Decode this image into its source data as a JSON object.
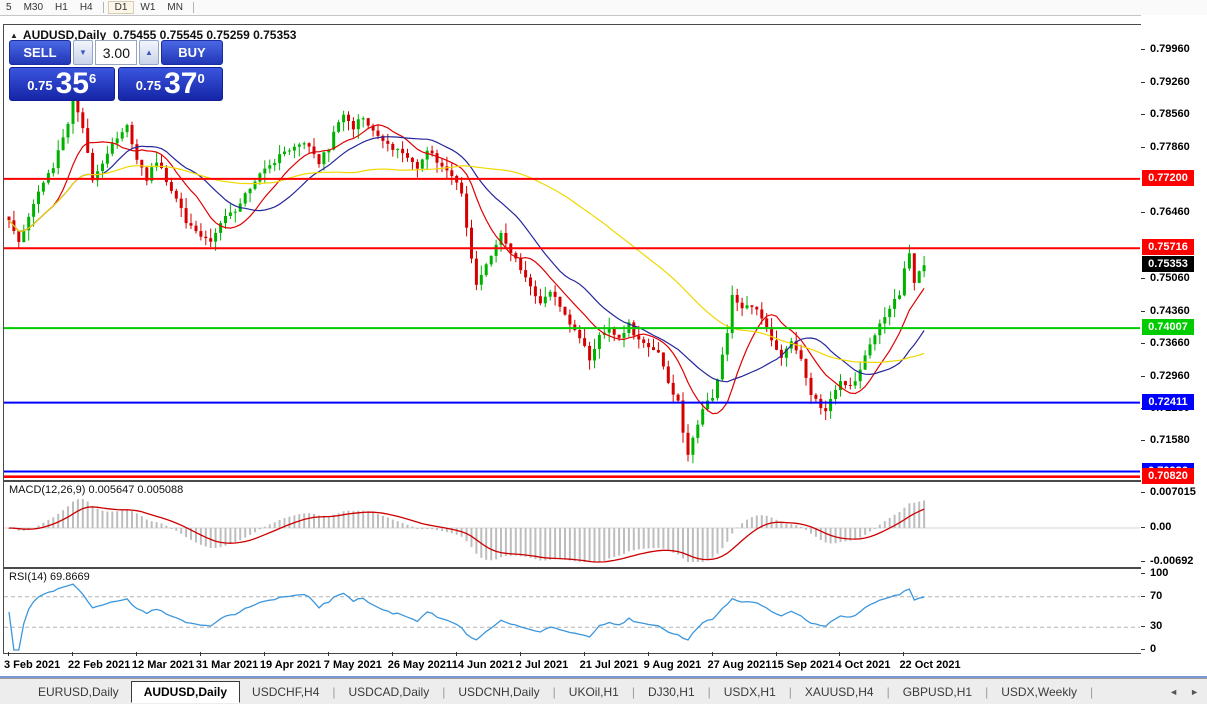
{
  "icons": {
    "collapse": "▲",
    "spin_up": "▲",
    "spin_down": "▼",
    "scroll_left": "◄",
    "scroll_right": "►"
  },
  "toolbar": {
    "periods": [
      "5",
      "M30",
      "H1",
      "H4",
      "D1",
      "W1",
      "MN"
    ],
    "active": "D1"
  },
  "chart": {
    "title_symbol": "AUDUSD,Daily",
    "title_ohlc": "0.75455 0.75545 0.75259 0.75353",
    "trade_panel": {
      "sell_label": "SELL",
      "buy_label": "BUY",
      "volume": "3.00",
      "sell_price_prefix": "0.75",
      "sell_price_big": "35",
      "sell_price_sup": "6",
      "buy_price_prefix": "0.75",
      "buy_price_big": "37",
      "buy_price_sup": "0"
    }
  },
  "price_axis": {
    "ticks": [
      {
        "label": "0.79960",
        "price": 0.7996
      },
      {
        "label": "0.79260",
        "price": 0.7926
      },
      {
        "label": "0.78560",
        "price": 0.7856
      },
      {
        "label": "0.77860",
        "price": 0.7786
      },
      {
        "label": "0.76460",
        "price": 0.7646
      },
      {
        "label": "0.75060",
        "price": 0.7506
      },
      {
        "label": "0.74360",
        "price": 0.7436
      },
      {
        "label": "0.73660",
        "price": 0.7366
      },
      {
        "label": "0.72960",
        "price": 0.7296
      },
      {
        "label": "0.72280",
        "price": 0.7228
      },
      {
        "label": "0.71580",
        "price": 0.7158
      }
    ],
    "current": {
      "label": "0.75353",
      "price": 0.75353,
      "bg": "#000000",
      "fg": "#ffffff"
    }
  },
  "chart_data": {
    "type": "candlestick",
    "symbol": "AUDUSD",
    "timeframe": "Daily",
    "num_candles": 187,
    "final_close": 0.75353,
    "y_axis_range": [
      0.7076,
      0.7996
    ],
    "close_path": [
      [
        0,
        0.763
      ],
      [
        2,
        0.7585
      ],
      [
        5,
        0.767
      ],
      [
        9,
        0.7745
      ],
      [
        12,
        0.7838
      ],
      [
        13,
        0.7885
      ],
      [
        15,
        0.783
      ],
      [
        17,
        0.7722
      ],
      [
        19,
        0.7758
      ],
      [
        22,
        0.7808
      ],
      [
        24,
        0.7832
      ],
      [
        26,
        0.7762
      ],
      [
        28,
        0.7722
      ],
      [
        30,
        0.7757
      ],
      [
        33,
        0.77
      ],
      [
        36,
        0.7627
      ],
      [
        39,
        0.7602
      ],
      [
        41,
        0.7588
      ],
      [
        43,
        0.7632
      ],
      [
        46,
        0.7652
      ],
      [
        49,
        0.7702
      ],
      [
        52,
        0.7737
      ],
      [
        55,
        0.7772
      ],
      [
        58,
        0.7787
      ],
      [
        61,
        0.7792
      ],
      [
        63,
        0.7757
      ],
      [
        65,
        0.7787
      ],
      [
        67,
        0.7842
      ],
      [
        68,
        0.7862
      ],
      [
        70,
        0.7832
      ],
      [
        72,
        0.7852
      ],
      [
        74,
        0.7822
      ],
      [
        77,
        0.7792
      ],
      [
        80,
        0.7777
      ],
      [
        83,
        0.7747
      ],
      [
        85,
        0.7782
      ],
      [
        87,
        0.7757
      ],
      [
        89,
        0.7732
      ],
      [
        91,
        0.7712
      ],
      [
        92,
        0.7692
      ],
      [
        93,
        0.7612
      ],
      [
        94,
        0.7545
      ],
      [
        95,
        0.7488
      ],
      [
        97,
        0.7532
      ],
      [
        99,
        0.7582
      ],
      [
        100,
        0.7602
      ],
      [
        102,
        0.7562
      ],
      [
        104,
        0.7527
      ],
      [
        106,
        0.7492
      ],
      [
        108,
        0.7452
      ],
      [
        110,
        0.7482
      ],
      [
        112,
        0.7442
      ],
      [
        115,
        0.7397
      ],
      [
        117,
        0.7362
      ],
      [
        118,
        0.7332
      ],
      [
        120,
        0.7392
      ],
      [
        122,
        0.7402
      ],
      [
        124,
        0.7382
      ],
      [
        126,
        0.7407
      ],
      [
        128,
        0.7372
      ],
      [
        130,
        0.7357
      ],
      [
        132,
        0.7342
      ],
      [
        133,
        0.7312
      ],
      [
        134,
        0.7282
      ],
      [
        136,
        0.7242
      ],
      [
        137,
        0.7182
      ],
      [
        138,
        0.7132
      ],
      [
        139,
        0.7162
      ],
      [
        141,
        0.7232
      ],
      [
        143,
        0.7252
      ],
      [
        144,
        0.7292
      ],
      [
        146,
        0.7392
      ],
      [
        147,
        0.7468
      ],
      [
        149,
        0.7442
      ],
      [
        151,
        0.7452
      ],
      [
        153,
        0.7422
      ],
      [
        155,
        0.7372
      ],
      [
        157,
        0.7337
      ],
      [
        159,
        0.7367
      ],
      [
        161,
        0.7332
      ],
      [
        163,
        0.7262
      ],
      [
        165,
        0.7232
      ],
      [
        166,
        0.7222
      ],
      [
        168,
        0.7267
      ],
      [
        169,
        0.7292
      ],
      [
        171,
        0.7272
      ],
      [
        173,
        0.7312
      ],
      [
        175,
        0.7362
      ],
      [
        177,
        0.7412
      ],
      [
        179,
        0.7442
      ],
      [
        181,
        0.7472
      ],
      [
        182,
        0.7532
      ],
      [
        183,
        0.7556
      ],
      [
        184,
        0.7502
      ],
      [
        185,
        0.7522
      ],
      [
        186,
        0.75353
      ]
    ],
    "levels": [
      {
        "price": 0.772,
        "label": "0.77200",
        "color": "#ff0000",
        "width": 2
      },
      {
        "price": 0.75716,
        "label": "0.75716",
        "color": "#ff0000",
        "width": 2
      },
      {
        "price": 0.74007,
        "label": "0.74007",
        "color": "#00cc00",
        "width": 2
      },
      {
        "price": 0.72411,
        "label": "0.72411",
        "color": "#0000ff",
        "width": 2
      },
      {
        "price": 0.70936,
        "label": "0.70936",
        "color": "#0000ff",
        "width": 2
      },
      {
        "price": 0.7082,
        "label": "0.70820",
        "color": "#ff0000",
        "width": 3
      }
    ],
    "moving_averages": [
      {
        "period": 10,
        "color": "#e00000"
      },
      {
        "period": 20,
        "color": "#26269b"
      },
      {
        "period": 55,
        "color": "#f0d800"
      }
    ],
    "candle_up_color": "#00b200",
    "candle_down_color": "#d60000"
  },
  "macd": {
    "label": "MACD(12,26,9) 0.005647 0.005088",
    "params": [
      12,
      26,
      9
    ],
    "values": [
      "0.005647",
      "0.005088"
    ],
    "axis": [
      {
        "label": "0.007015",
        "value": 0.007015
      },
      {
        "label": "0.00",
        "value": 0
      },
      {
        "label": "-0.00692",
        "value": -0.00692
      }
    ],
    "histogram_color": "#bdbdbd",
    "signal_color": "#cc0000"
  },
  "rsi": {
    "label": "RSI(14) 69.8669",
    "period": 14,
    "value": "69.8669",
    "axis": [
      {
        "label": "100",
        "value": 100
      },
      {
        "label": "70",
        "value": 70
      },
      {
        "label": "30",
        "value": 30
      },
      {
        "label": "0",
        "value": 0
      }
    ],
    "levels": [
      70,
      30
    ],
    "line_color": "#3c96dc"
  },
  "date_axis": {
    "labels": [
      "3 Feb 2021",
      "22 Feb 2021",
      "12 Mar 2021",
      "31 Mar 2021",
      "19 Apr 2021",
      "7 May 2021",
      "26 May 2021",
      "14 Jun 2021",
      "2 Jul 2021",
      "21 Jul 2021",
      "9 Aug 2021",
      "27 Aug 2021",
      "15 Sep 2021",
      "4 Oct 2021",
      "22 Oct 2021"
    ]
  },
  "tabs": {
    "items": [
      "EURUSD,Daily",
      "AUDUSD,Daily",
      "USDCHF,H4",
      "USDCAD,Daily",
      "USDCNH,Daily",
      "UKOil,H1",
      "DJ30,H1",
      "USDX,H1",
      "XAUUSD,H4",
      "GBPUSD,H1",
      "USDX,Weekly"
    ],
    "active": "AUDUSD,Daily"
  }
}
